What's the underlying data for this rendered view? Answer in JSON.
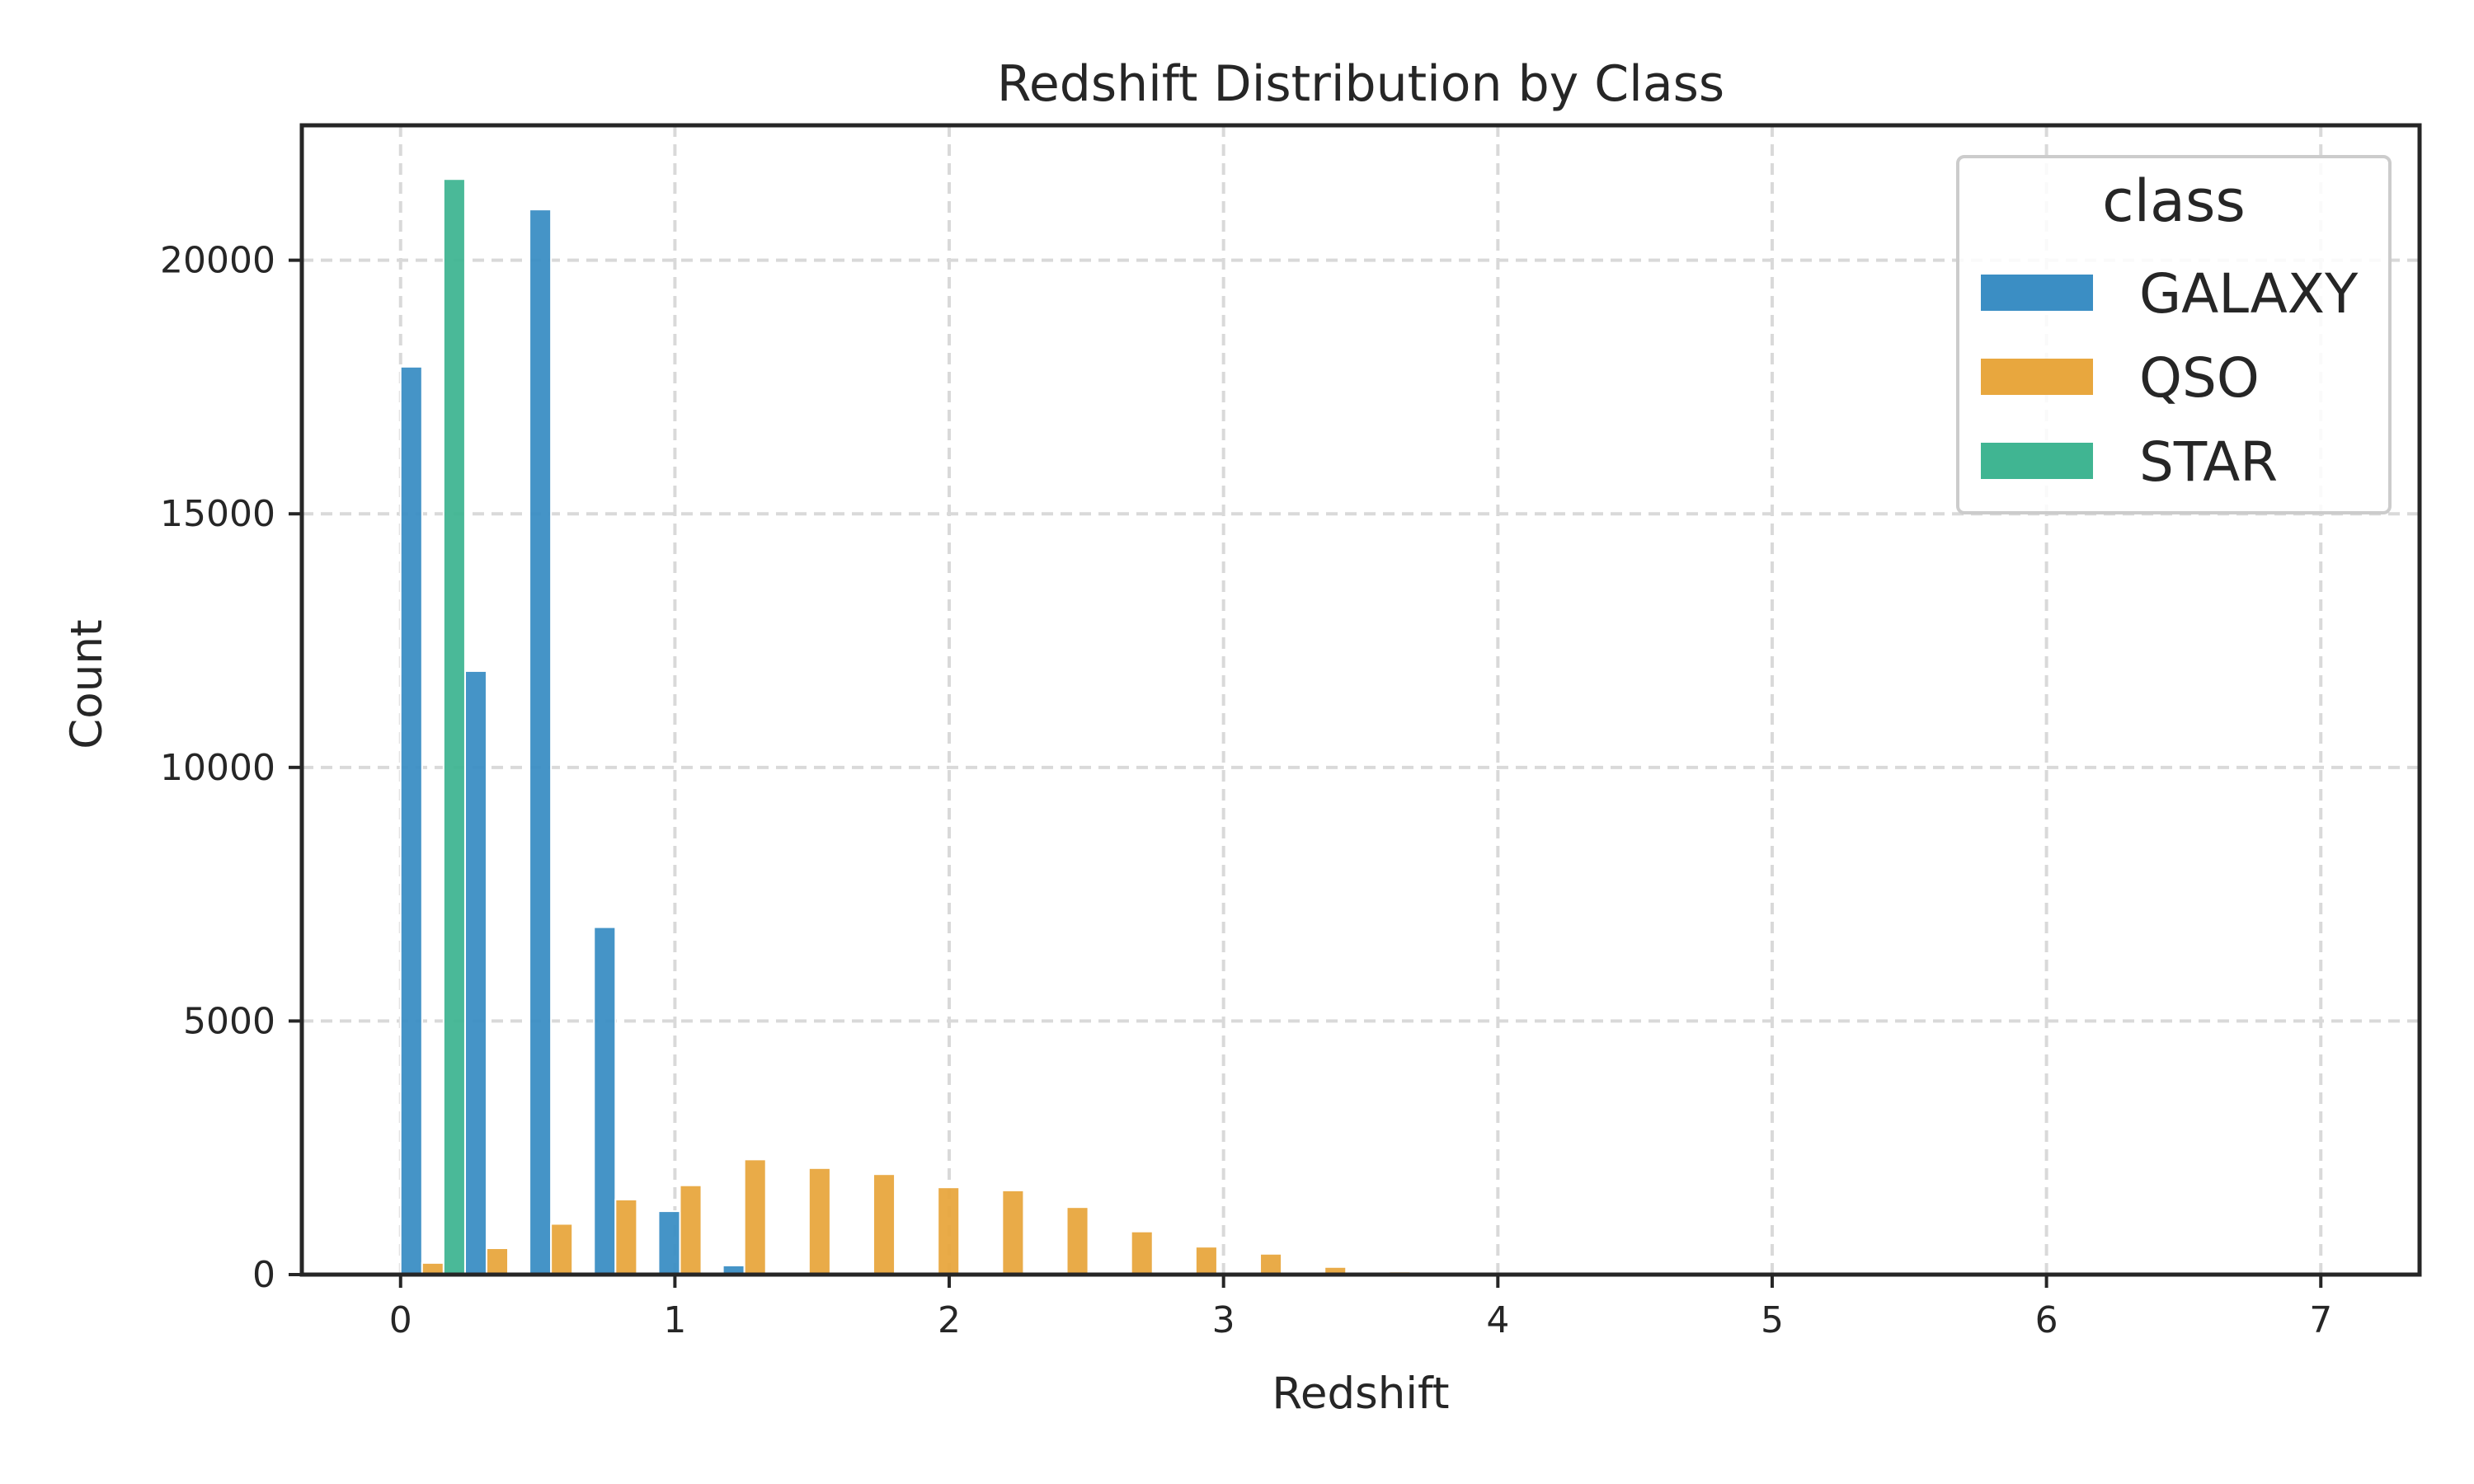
{
  "chart_data": {
    "type": "bar",
    "title": "Redshift Distribution by Class",
    "xlabel": "Redshift",
    "ylabel": "Count",
    "xlim": [
      -0.36,
      7.36
    ],
    "ylim": [
      0,
      22660
    ],
    "xticks": [
      0,
      1,
      2,
      3,
      4,
      5,
      6,
      7
    ],
    "yticks": [
      0,
      5000,
      10000,
      15000,
      20000
    ],
    "grid": true,
    "legend": {
      "title": "class",
      "position": "top-right"
    },
    "bin_edges": [
      0,
      0.235,
      0.47,
      0.705,
      0.94,
      1.175,
      1.41,
      1.645,
      1.88,
      2.115,
      2.35,
      2.585,
      2.82,
      3.055,
      3.29,
      3.525,
      3.76,
      3.995,
      4.23,
      4.465,
      4.7,
      4.935,
      5.17,
      5.405,
      5.64,
      5.875,
      6.11,
      6.345,
      6.58,
      6.815,
      7.05
    ],
    "series": [
      {
        "name": "GALAXY",
        "color": "#3b8ec4",
        "values": [
          17900,
          11900,
          21000,
          6850,
          1250,
          180,
          40,
          10,
          0,
          0,
          0,
          0,
          0,
          0,
          0,
          0,
          0,
          0,
          0,
          0,
          0,
          0,
          0,
          0,
          0,
          0,
          0,
          0,
          0,
          0
        ]
      },
      {
        "name": "QSO",
        "color": "#e8a73e",
        "values": [
          230,
          520,
          1000,
          1480,
          1760,
          2270,
          2100,
          1980,
          1720,
          1660,
          1330,
          850,
          550,
          410,
          150,
          60,
          30,
          10,
          0,
          0,
          0,
          0,
          0,
          0,
          0,
          0,
          0,
          0,
          0,
          5
        ]
      },
      {
        "name": "STAR",
        "color": "#40b592",
        "values": [
          21600,
          0,
          0,
          0,
          0,
          0,
          0,
          0,
          0,
          0,
          0,
          0,
          0,
          0,
          0,
          0,
          0,
          0,
          0,
          0,
          0,
          0,
          0,
          0,
          0,
          0,
          0,
          0,
          0,
          0
        ]
      }
    ]
  }
}
